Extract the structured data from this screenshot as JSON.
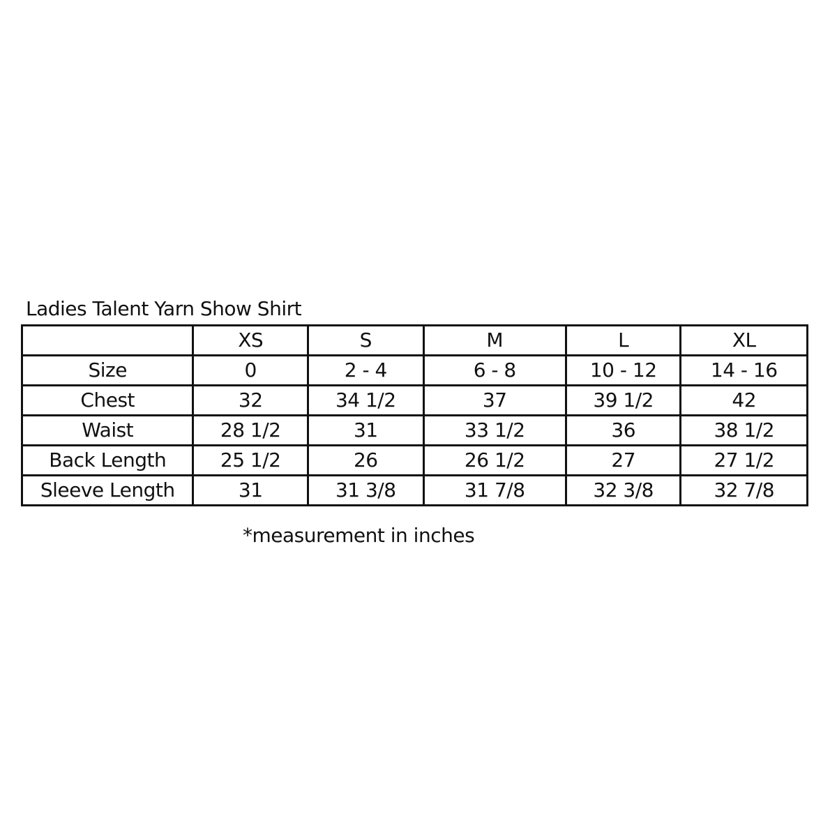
{
  "title": "Ladies Talent Yarn Show Shirt",
  "table": {
    "headers": [
      "",
      "XS",
      "S",
      "M",
      "L",
      "XL"
    ],
    "rows": [
      [
        "Size",
        "0",
        "2 - 4",
        "6 - 8",
        "10 - 12",
        "14 - 16"
      ],
      [
        "Chest",
        "32",
        "34 1/2",
        "37",
        "39 1/2",
        "42"
      ],
      [
        "Waist",
        "28 1/2",
        "31",
        "33 1/2",
        "36",
        "38 1/2"
      ],
      [
        "Back Length",
        "25 1/2",
        "26",
        "26 1/2",
        "27",
        "27 1/2"
      ],
      [
        "Sleeve Length",
        "31",
        "31 3/8",
        "31 7/8",
        "32 3/8",
        "32 7/8"
      ]
    ]
  },
  "note": "*measurement in inches"
}
